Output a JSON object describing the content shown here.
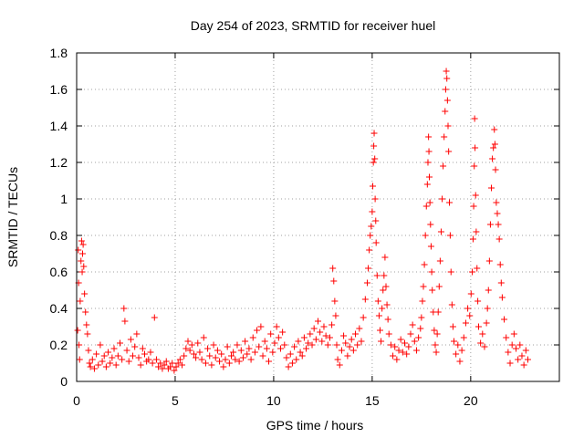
{
  "chart_data": {
    "type": "scatter",
    "title": "Day 254 of 2023, SRMTID for receiver huel",
    "xlabel": "GPS time / hours",
    "ylabel": "SRMTID / TECUs",
    "xlim": [
      0,
      24.5
    ],
    "ylim": [
      0,
      1.8
    ],
    "xticks": [
      0,
      5,
      10,
      15,
      20
    ],
    "xtick_labels": [
      "0",
      "5",
      "10",
      "15",
      "20"
    ],
    "yticks": [
      0,
      0.2,
      0.4,
      0.6,
      0.8,
      1.0,
      1.2,
      1.4,
      1.6,
      1.8
    ],
    "ytick_labels": [
      "0",
      "0.2",
      "0.4",
      "0.6",
      "0.8",
      "1",
      "1.2",
      "1.4",
      "1.6",
      "1.8"
    ],
    "grid": true,
    "marker": "+",
    "color": "#ff0000",
    "series": [
      {
        "name": "SRMTID",
        "points": [
          [
            0.05,
            0.28
          ],
          [
            0.08,
            0.72
          ],
          [
            0.1,
            0.54
          ],
          [
            0.12,
            0.2
          ],
          [
            0.15,
            0.12
          ],
          [
            0.18,
            0.44
          ],
          [
            0.22,
            0.66
          ],
          [
            0.25,
            0.77
          ],
          [
            0.28,
            0.6
          ],
          [
            0.3,
            0.7
          ],
          [
            0.33,
            0.75
          ],
          [
            0.36,
            0.63
          ],
          [
            0.4,
            0.48
          ],
          [
            0.45,
            0.38
          ],
          [
            0.5,
            0.31
          ],
          [
            0.55,
            0.26
          ],
          [
            0.6,
            0.17
          ],
          [
            0.65,
            0.1
          ],
          [
            0.7,
            0.08
          ],
          [
            0.8,
            0.12
          ],
          [
            0.9,
            0.07
          ],
          [
            1.0,
            0.15
          ],
          [
            1.1,
            0.09
          ],
          [
            1.2,
            0.2
          ],
          [
            1.3,
            0.11
          ],
          [
            1.4,
            0.14
          ],
          [
            1.5,
            0.08
          ],
          [
            1.6,
            0.16
          ],
          [
            1.7,
            0.1
          ],
          [
            1.8,
            0.13
          ],
          [
            1.9,
            0.18
          ],
          [
            2.0,
            0.09
          ],
          [
            2.1,
            0.14
          ],
          [
            2.2,
            0.21
          ],
          [
            2.3,
            0.12
          ],
          [
            2.4,
            0.4
          ],
          [
            2.45,
            0.33
          ],
          [
            2.55,
            0.17
          ],
          [
            2.65,
            0.11
          ],
          [
            2.75,
            0.23
          ],
          [
            2.85,
            0.14
          ],
          [
            2.95,
            0.19
          ],
          [
            3.05,
            0.26
          ],
          [
            3.15,
            0.13
          ],
          [
            3.25,
            0.09
          ],
          [
            3.35,
            0.18
          ],
          [
            3.45,
            0.15
          ],
          [
            3.55,
            0.11
          ],
          [
            3.65,
            0.12
          ],
          [
            3.75,
            0.16
          ],
          [
            3.85,
            0.1
          ],
          [
            3.95,
            0.35
          ],
          [
            4.05,
            0.12
          ],
          [
            4.15,
            0.08
          ],
          [
            4.25,
            0.1
          ],
          [
            4.35,
            0.07
          ],
          [
            4.45,
            0.09
          ],
          [
            4.55,
            0.11
          ],
          [
            4.65,
            0.07
          ],
          [
            4.75,
            0.08
          ],
          [
            4.85,
            0.1
          ],
          [
            4.95,
            0.06
          ],
          [
            5.05,
            0.08
          ],
          [
            5.15,
            0.1
          ],
          [
            5.25,
            0.12
          ],
          [
            5.35,
            0.09
          ],
          [
            5.45,
            0.14
          ],
          [
            5.55,
            0.18
          ],
          [
            5.65,
            0.22
          ],
          [
            5.75,
            0.17
          ],
          [
            5.85,
            0.2
          ],
          [
            5.95,
            0.15
          ],
          [
            6.05,
            0.13
          ],
          [
            6.15,
            0.21
          ],
          [
            6.25,
            0.16
          ],
          [
            6.35,
            0.12
          ],
          [
            6.45,
            0.24
          ],
          [
            6.55,
            0.1
          ],
          [
            6.65,
            0.18
          ],
          [
            6.75,
            0.14
          ],
          [
            6.85,
            0.09
          ],
          [
            6.95,
            0.2
          ],
          [
            7.05,
            0.13
          ],
          [
            7.15,
            0.17
          ],
          [
            7.25,
            0.11
          ],
          [
            7.35,
            0.15
          ],
          [
            7.45,
            0.08
          ],
          [
            7.55,
            0.12
          ],
          [
            7.65,
            0.19
          ],
          [
            7.75,
            0.1
          ],
          [
            7.85,
            0.14
          ],
          [
            7.95,
            0.16
          ],
          [
            8.05,
            0.12
          ],
          [
            8.15,
            0.2
          ],
          [
            8.25,
            0.11
          ],
          [
            8.35,
            0.17
          ],
          [
            8.45,
            0.13
          ],
          [
            8.55,
            0.22
          ],
          [
            8.65,
            0.15
          ],
          [
            8.75,
            0.18
          ],
          [
            8.85,
            0.12
          ],
          [
            8.95,
            0.24
          ],
          [
            9.05,
            0.16
          ],
          [
            9.15,
            0.28
          ],
          [
            9.25,
            0.19
          ],
          [
            9.35,
            0.3
          ],
          [
            9.45,
            0.14
          ],
          [
            9.55,
            0.22
          ],
          [
            9.65,
            0.18
          ],
          [
            9.75,
            0.11
          ],
          [
            9.85,
            0.26
          ],
          [
            9.95,
            0.16
          ],
          [
            10.05,
            0.21
          ],
          [
            10.15,
            0.3
          ],
          [
            10.25,
            0.24
          ],
          [
            10.35,
            0.18
          ],
          [
            10.45,
            0.27
          ],
          [
            10.55,
            0.2
          ],
          [
            10.65,
            0.13
          ],
          [
            10.75,
            0.08
          ],
          [
            10.85,
            0.15
          ],
          [
            10.95,
            0.1
          ],
          [
            11.05,
            0.19
          ],
          [
            11.15,
            0.12
          ],
          [
            11.25,
            0.22
          ],
          [
            11.35,
            0.16
          ],
          [
            11.45,
            0.14
          ],
          [
            11.55,
            0.24
          ],
          [
            11.65,
            0.18
          ],
          [
            11.75,
            0.21
          ],
          [
            11.85,
            0.26
          ],
          [
            11.95,
            0.2
          ],
          [
            12.05,
            0.29
          ],
          [
            12.15,
            0.23
          ],
          [
            12.25,
            0.33
          ],
          [
            12.35,
            0.27
          ],
          [
            12.45,
            0.22
          ],
          [
            12.55,
            0.3
          ],
          [
            12.65,
            0.25
          ],
          [
            12.75,
            0.2
          ],
          [
            12.85,
            0.24
          ],
          [
            12.95,
            0.31
          ],
          [
            13.0,
            0.62
          ],
          [
            13.05,
            0.55
          ],
          [
            13.1,
            0.44
          ],
          [
            13.15,
            0.36
          ],
          [
            13.2,
            0.2
          ],
          [
            13.25,
            0.12
          ],
          [
            13.35,
            0.09
          ],
          [
            13.45,
            0.17
          ],
          [
            13.55,
            0.25
          ],
          [
            13.65,
            0.21
          ],
          [
            13.75,
            0.14
          ],
          [
            13.85,
            0.19
          ],
          [
            13.95,
            0.23
          ],
          [
            14.05,
            0.17
          ],
          [
            14.15,
            0.26
          ],
          [
            14.25,
            0.2
          ],
          [
            14.35,
            0.29
          ],
          [
            14.45,
            0.22
          ],
          [
            14.55,
            0.35
          ],
          [
            14.65,
            0.45
          ],
          [
            14.75,
            0.54
          ],
          [
            14.8,
            0.62
          ],
          [
            14.85,
            0.72
          ],
          [
            14.9,
            0.8
          ],
          [
            14.95,
            0.85
          ],
          [
            15.0,
            0.93
          ],
          [
            15.03,
            1.07
          ],
          [
            15.06,
            1.2
          ],
          [
            15.08,
            1.29
          ],
          [
            15.1,
            1.36
          ],
          [
            15.13,
            1.22
          ],
          [
            15.15,
            1.0
          ],
          [
            15.18,
            0.88
          ],
          [
            15.2,
            0.76
          ],
          [
            15.25,
            0.58
          ],
          [
            15.3,
            0.44
          ],
          [
            15.35,
            0.36
          ],
          [
            15.4,
            0.28
          ],
          [
            15.45,
            0.22
          ],
          [
            15.5,
            0.4
          ],
          [
            15.55,
            0.5
          ],
          [
            15.6,
            0.58
          ],
          [
            15.65,
            0.68
          ],
          [
            15.7,
            0.52
          ],
          [
            15.75,
            0.42
          ],
          [
            15.8,
            0.34
          ],
          [
            15.85,
            0.26
          ],
          [
            15.95,
            0.2
          ],
          [
            16.05,
            0.14
          ],
          [
            16.15,
            0.19
          ],
          [
            16.25,
            0.12
          ],
          [
            16.35,
            0.17
          ],
          [
            16.45,
            0.23
          ],
          [
            16.55,
            0.16
          ],
          [
            16.65,
            0.21
          ],
          [
            16.75,
            0.15
          ],
          [
            16.85,
            0.19
          ],
          [
            16.95,
            0.26
          ],
          [
            17.05,
            0.31
          ],
          [
            17.15,
            0.22
          ],
          [
            17.25,
            0.17
          ],
          [
            17.35,
            0.24
          ],
          [
            17.45,
            0.29
          ],
          [
            17.5,
            0.35
          ],
          [
            17.55,
            0.44
          ],
          [
            17.6,
            0.52
          ],
          [
            17.65,
            0.64
          ],
          [
            17.7,
            0.8
          ],
          [
            17.75,
            0.96
          ],
          [
            17.8,
            1.08
          ],
          [
            17.83,
            1.2
          ],
          [
            17.86,
            1.34
          ],
          [
            17.88,
            1.26
          ],
          [
            17.9,
            1.12
          ],
          [
            17.93,
            0.98
          ],
          [
            17.96,
            0.86
          ],
          [
            17.99,
            0.74
          ],
          [
            18.02,
            0.6
          ],
          [
            18.05,
            0.5
          ],
          [
            18.1,
            0.38
          ],
          [
            18.15,
            0.28
          ],
          [
            18.2,
            0.2
          ],
          [
            18.25,
            0.16
          ],
          [
            18.3,
            0.26
          ],
          [
            18.35,
            0.38
          ],
          [
            18.4,
            0.52
          ],
          [
            18.45,
            0.66
          ],
          [
            18.5,
            0.82
          ],
          [
            18.55,
            1.0
          ],
          [
            18.6,
            1.18
          ],
          [
            18.65,
            1.34
          ],
          [
            18.7,
            1.48
          ],
          [
            18.73,
            1.6
          ],
          [
            18.76,
            1.7
          ],
          [
            18.79,
            1.66
          ],
          [
            18.82,
            1.54
          ],
          [
            18.85,
            1.4
          ],
          [
            18.88,
            1.26
          ],
          [
            18.92,
            0.98
          ],
          [
            18.96,
            0.8
          ],
          [
            19.0,
            0.6
          ],
          [
            19.05,
            0.42
          ],
          [
            19.1,
            0.3
          ],
          [
            19.15,
            0.22
          ],
          [
            19.25,
            0.15
          ],
          [
            19.35,
            0.2
          ],
          [
            19.45,
            0.11
          ],
          [
            19.55,
            0.17
          ],
          [
            19.65,
            0.24
          ],
          [
            19.75,
            0.32
          ],
          [
            19.85,
            0.4
          ],
          [
            19.95,
            0.36
          ],
          [
            20.02,
            0.48
          ],
          [
            20.08,
            0.6
          ],
          [
            20.12,
            0.78
          ],
          [
            20.15,
            0.96
          ],
          [
            20.18,
            1.18
          ],
          [
            20.2,
            1.44
          ],
          [
            20.22,
            1.28
          ],
          [
            20.25,
            1.02
          ],
          [
            20.28,
            0.82
          ],
          [
            20.32,
            0.62
          ],
          [
            20.36,
            0.44
          ],
          [
            20.4,
            0.3
          ],
          [
            20.5,
            0.21
          ],
          [
            20.6,
            0.26
          ],
          [
            20.7,
            0.19
          ],
          [
            20.8,
            0.32
          ],
          [
            20.85,
            0.4
          ],
          [
            20.9,
            0.5
          ],
          [
            20.95,
            0.66
          ],
          [
            21.0,
            0.86
          ],
          [
            21.05,
            1.06
          ],
          [
            21.1,
            1.22
          ],
          [
            21.15,
            1.28
          ],
          [
            21.2,
            1.38
          ],
          [
            21.23,
            1.3
          ],
          [
            21.26,
            1.16
          ],
          [
            21.3,
            0.98
          ],
          [
            21.35,
            0.92
          ],
          [
            21.4,
            0.86
          ],
          [
            21.45,
            0.78
          ],
          [
            21.5,
            0.64
          ],
          [
            21.55,
            0.54
          ],
          [
            21.6,
            0.46
          ],
          [
            21.7,
            0.34
          ],
          [
            21.8,
            0.24
          ],
          [
            21.9,
            0.16
          ],
          [
            22.0,
            0.1
          ],
          [
            22.1,
            0.2
          ],
          [
            22.2,
            0.26
          ],
          [
            22.3,
            0.18
          ],
          [
            22.4,
            0.12
          ],
          [
            22.5,
            0.2
          ],
          [
            22.6,
            0.14
          ],
          [
            22.7,
            0.09
          ],
          [
            22.8,
            0.17
          ],
          [
            22.9,
            0.12
          ]
        ]
      }
    ]
  }
}
